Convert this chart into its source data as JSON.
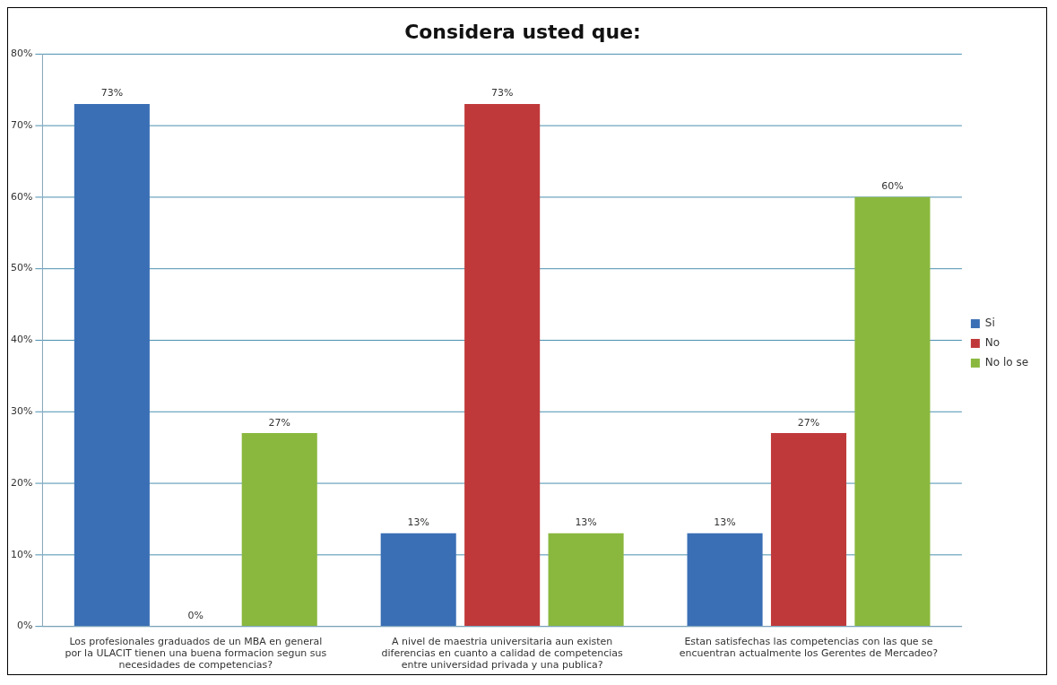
{
  "chart_data": {
    "type": "bar",
    "title": "Considera usted que:",
    "categories": [
      "Los profesionales graduados de un MBA en general por la ULACIT tienen una buena formacion segun sus necesidades de competencias?",
      "A nivel de maestria universitaria  aun existen diferencias en cuanto a calidad de competencias entre universidad privada y una publica?",
      "Estan satisfechas las competencias con las que se encuentran actualmente los Gerentes de Mercadeo?"
    ],
    "series": [
      {
        "name": "Si",
        "color": "#3a6fb5",
        "values": [
          73,
          13,
          13
        ],
        "value_labels": [
          "73%",
          "13%",
          "13%"
        ]
      },
      {
        "name": "No",
        "color": "#c0393a",
        "values": [
          0,
          73,
          27
        ],
        "value_labels": [
          "0%",
          "73%",
          "27%"
        ]
      },
      {
        "name": "No lo se",
        "color": "#8ab83e",
        "values": [
          27,
          13,
          60
        ],
        "value_labels": [
          "27%",
          "13%",
          "60%"
        ]
      }
    ],
    "ylim": [
      0,
      80
    ],
    "yticks": [
      {
        "value": 0,
        "label": "0%"
      },
      {
        "value": 10,
        "label": "10%"
      },
      {
        "value": 20,
        "label": "20%"
      },
      {
        "value": 30,
        "label": "30%"
      },
      {
        "value": 40,
        "label": "40%"
      },
      {
        "value": 50,
        "label": "50%"
      },
      {
        "value": 60,
        "label": "60%"
      },
      {
        "value": 70,
        "label": "70%"
      },
      {
        "value": 80,
        "label": "80%"
      }
    ],
    "grid": "y",
    "legend": "right"
  }
}
